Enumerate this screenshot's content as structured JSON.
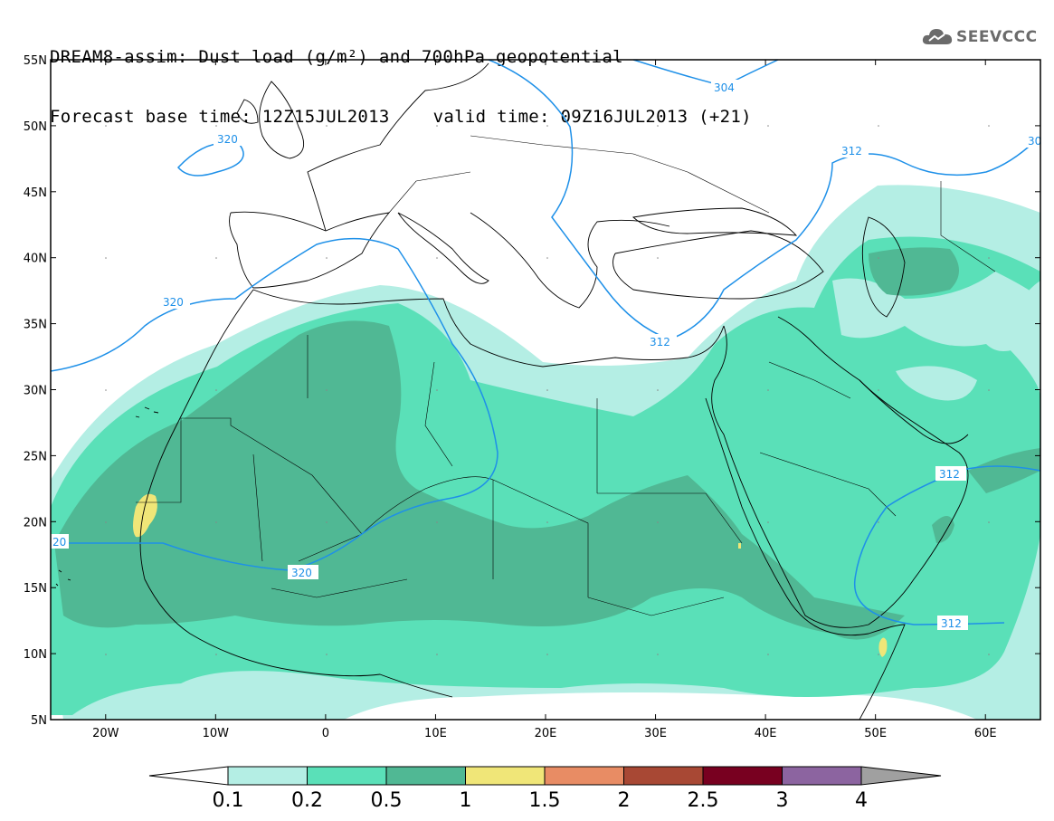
{
  "header": {
    "line1": "DREAM8-assim: Dust load (g/m²) and 700hPa geopotential",
    "line2_base": "Forecast base time: 12Z15JUL2013",
    "line2_valid": "valid time: 09Z16JUL2013 (+21)"
  },
  "logo": {
    "text": "SEEVCCC",
    "icon": "cloud-icon"
  },
  "axes": {
    "lat_labels": [
      "55N",
      "50N",
      "45N",
      "40N",
      "35N",
      "30N",
      "25N",
      "20N",
      "15N",
      "10N",
      "5N"
    ],
    "lon_labels": [
      "20W",
      "10W",
      "0",
      "10E",
      "20E",
      "30E",
      "40E",
      "50E",
      "60E"
    ],
    "lat_range": [
      5,
      55
    ],
    "lon_range": [
      -25,
      65
    ]
  },
  "colorbar": {
    "labels": [
      "0.1",
      "0.2",
      "0.5",
      "1",
      "1.5",
      "2",
      "2.5",
      "3",
      "4"
    ],
    "colors": [
      "#b4eee4",
      "#5ae0b8",
      "#50b894",
      "#f0e678",
      "#e88c64",
      "#a84834",
      "#780020",
      "#8c64a0"
    ],
    "under_color": "#ffffff",
    "over_color": "#a0a0a0"
  },
  "contours": {
    "color": "#1e90e8",
    "labels": [
      {
        "text": "304"
      },
      {
        "text": "320"
      },
      {
        "text": "312"
      },
      {
        "text": "30"
      },
      {
        "text": "320"
      },
      {
        "text": "312"
      },
      {
        "text": "312"
      },
      {
        "text": "20"
      },
      {
        "text": "320"
      },
      {
        "text": "312"
      }
    ]
  }
}
